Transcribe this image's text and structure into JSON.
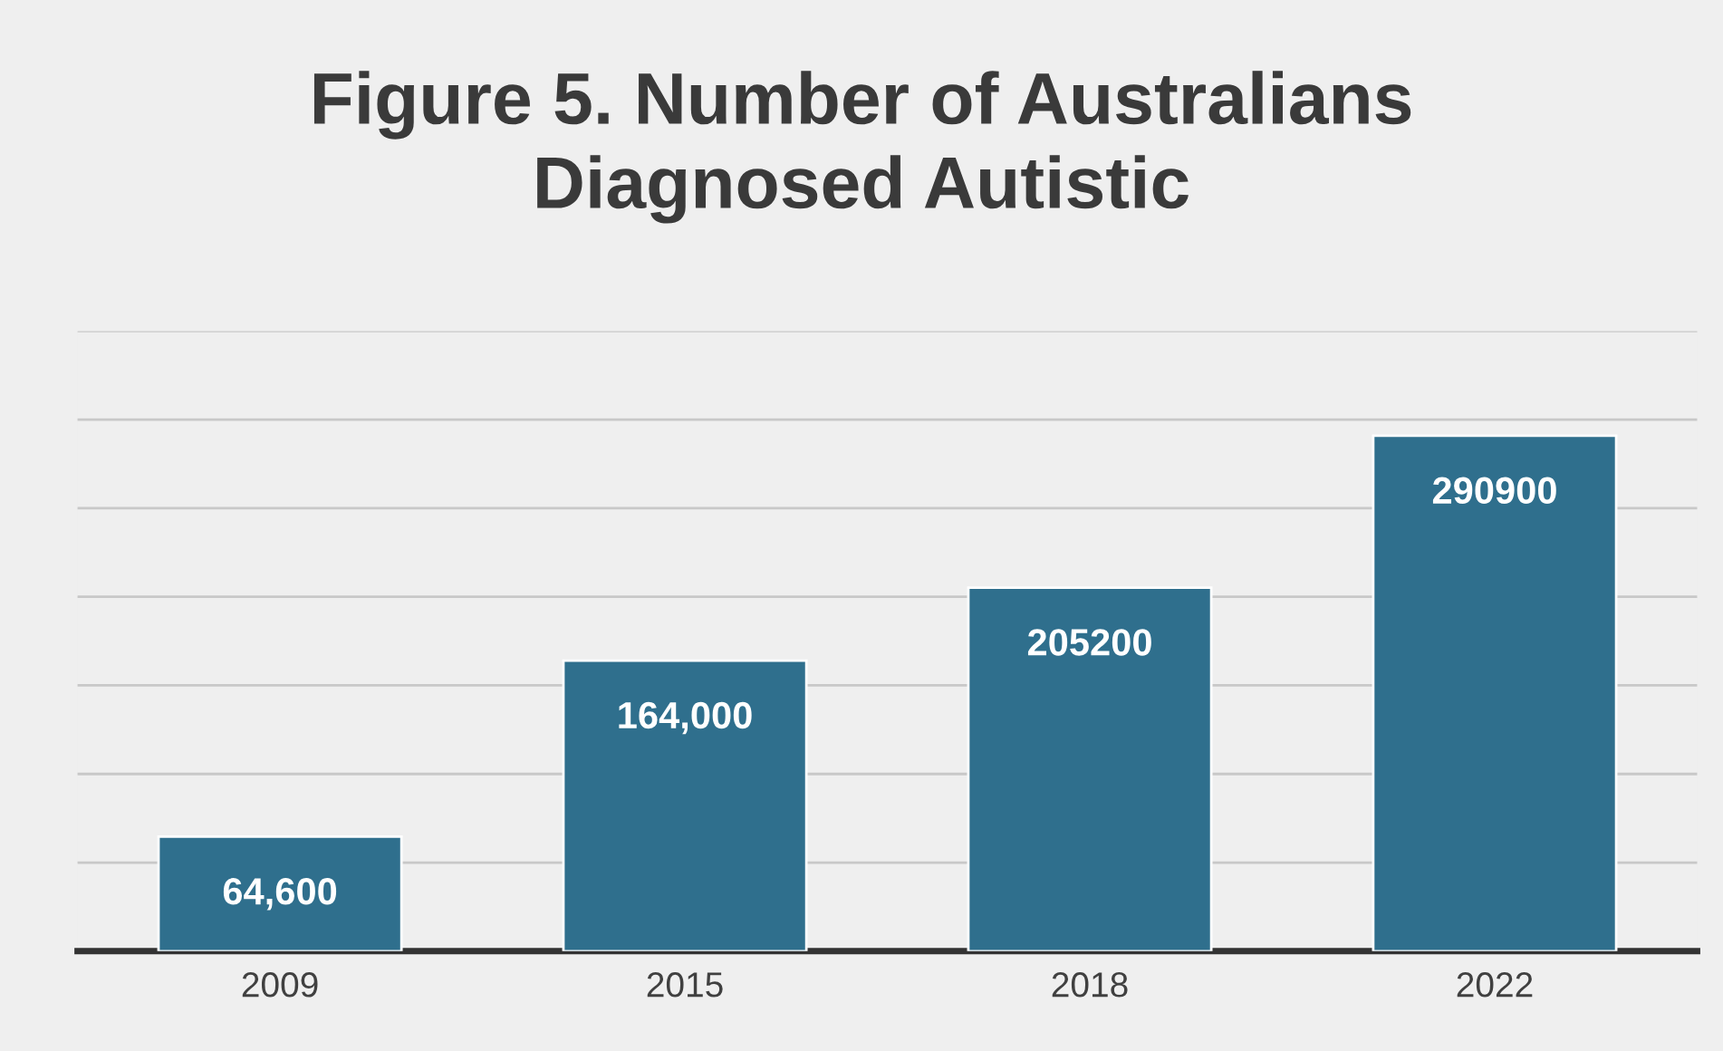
{
  "chart_data": {
    "type": "bar",
    "title": "Figure 5. Number of Australians\nDiagnosed Autistic",
    "categories": [
      "2009",
      "2015",
      "2018",
      "2022"
    ],
    "values": [
      64600,
      164000,
      205200,
      290900
    ],
    "value_labels": [
      "64,600",
      "164,000",
      "205200",
      "290900"
    ],
    "color": "#2f6f8d",
    "ylim": [
      0,
      350000
    ],
    "yticks": [
      {
        "value": 0,
        "label": null
      },
      {
        "value": 50000,
        "label": null
      },
      {
        "value": 100000,
        "label": null
      },
      {
        "value": 150000,
        "label": null
      },
      {
        "value": 200000,
        "label": null
      },
      {
        "value": 250000,
        "label": null
      },
      {
        "value": 300000,
        "label": null
      },
      {
        "value": 350000,
        "label": null
      }
    ],
    "tick_labels": "x",
    "grid": "y"
  }
}
